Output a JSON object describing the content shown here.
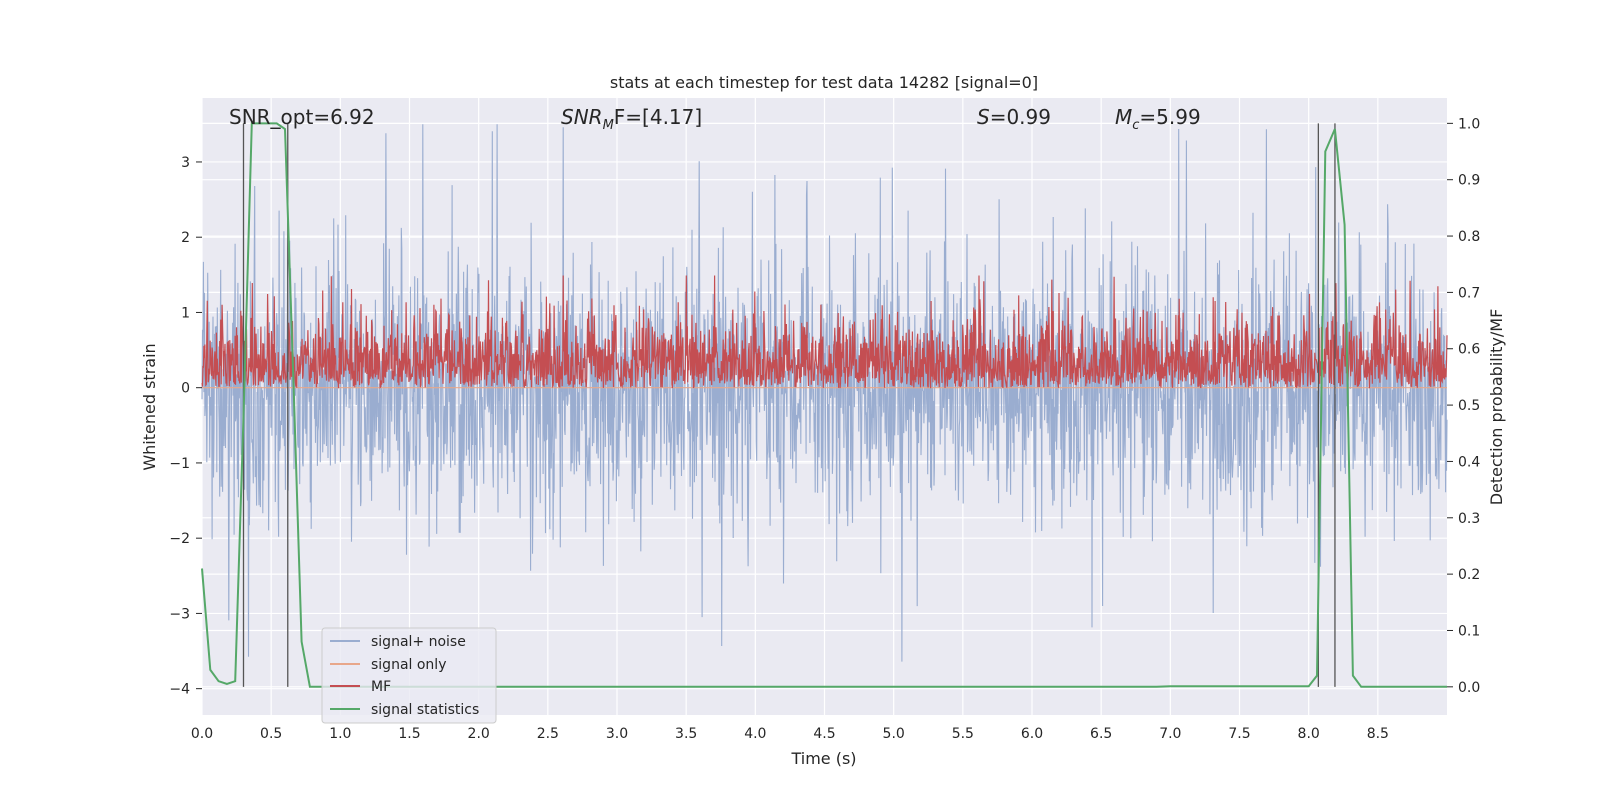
{
  "chart_data": {
    "type": "line",
    "title": "stats at each timestep for test data 14282 [signal=0]",
    "xlabel": "Time (s)",
    "ylabel_left": "Whitened strain",
    "ylabel_right": "Detection probability/MF",
    "xlim": [
      0.0,
      9.0
    ],
    "ylim_left": [
      -4.35,
      3.85
    ],
    "ylim_right": [
      -0.05,
      1.045
    ],
    "xticks": [
      "0.0",
      "0.5",
      "1.0",
      "1.5",
      "2.0",
      "2.5",
      "3.0",
      "3.5",
      "4.0",
      "4.5",
      "5.0",
      "5.5",
      "6.0",
      "6.5",
      "7.0",
      "7.5",
      "8.0",
      "8.5"
    ],
    "yticks_left": [
      "3",
      "2",
      "1",
      "0",
      "−1",
      "−2",
      "−3",
      "−4"
    ],
    "yticks_right": [
      "1.0",
      "0.9",
      "0.8",
      "0.7",
      "0.6",
      "0.5",
      "0.4",
      "0.3",
      "0.2",
      "0.1",
      "0.0"
    ],
    "grid": true,
    "legend_placement": "lower-left",
    "annotations": {
      "snr_opt": "SNR_opt=6.92",
      "snr_mf_var": "SNR",
      "snr_mf_sub": "M",
      "snr_mf_rest": "F=[4.17]",
      "s_var": "S",
      "s_rest": "=0.99",
      "mc_var": "M",
      "mc_sub": "c",
      "mc_rest": "=5.99"
    },
    "vertical_markers_s": [
      0.3,
      0.62,
      8.07,
      8.19
    ],
    "series": [
      {
        "name": "signal+ noise",
        "color": "#9aadd0",
        "axis": "left",
        "description_values": "noise around 0, typical range -1.7 to 1.7, peaks near 3.5 and -4.0"
      },
      {
        "name": "signal only",
        "color": "#e8a78a",
        "axis": "left",
        "x": [
          0.0,
          9.0
        ],
        "y": [
          0.0,
          0.0
        ]
      },
      {
        "name": "MF",
        "color": "#c44e52",
        "axis": "right",
        "baseline": 0.53,
        "range": [
          0.53,
          0.73
        ]
      },
      {
        "name": "signal statistics",
        "color": "#55a868",
        "axis": "right",
        "x": [
          0.0,
          0.06,
          0.12,
          0.18,
          0.24,
          0.3,
          0.36,
          0.42,
          0.48,
          0.54,
          0.6,
          0.66,
          0.72,
          0.78,
          0.84,
          0.9,
          1.5,
          3.0,
          5.0,
          6.9,
          7.0,
          8.0,
          8.06,
          8.12,
          8.19,
          8.26,
          8.32,
          8.38,
          8.44,
          9.0
        ],
        "y": [
          0.21,
          0.03,
          0.01,
          0.005,
          0.01,
          0.48,
          1.0,
          1.0,
          1.0,
          1.0,
          0.99,
          0.55,
          0.08,
          0.0,
          0.0,
          0.0,
          0.0,
          0.0,
          0.0,
          0.0,
          0.001,
          0.001,
          0.02,
          0.95,
          0.99,
          0.82,
          0.02,
          0.0,
          0.0,
          0.0
        ]
      }
    ]
  }
}
